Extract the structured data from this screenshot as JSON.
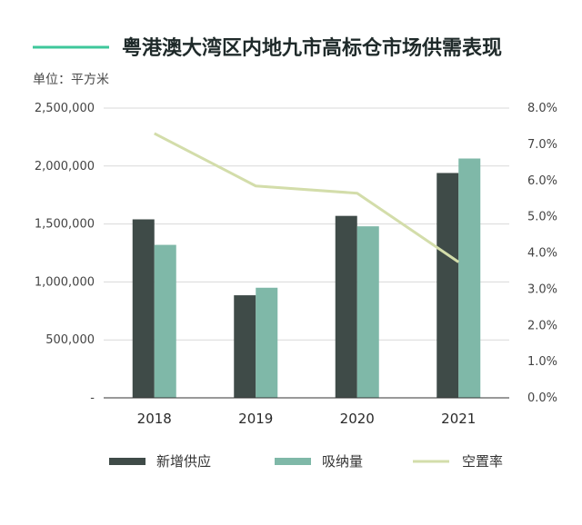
{
  "title": "粤港澳大湾区内地九市高标仓市场供需表现",
  "unit_label": "单位：平方米",
  "colors": {
    "title_line": "#3ec79b",
    "supply": "#3f4b48",
    "absorption": "#7fb8a8",
    "vacancy": "#d3ddaa",
    "grid": "#d9d9d9",
    "axis": "#333333"
  },
  "chart_data": {
    "type": "bar",
    "categories": [
      "2018",
      "2019",
      "2020",
      "2021"
    ],
    "series": [
      {
        "name": "新增供应",
        "type": "bar",
        "axis": "left",
        "values": [
          1540000,
          885000,
          1570000,
          1940000
        ]
      },
      {
        "name": "吸纳量",
        "type": "bar",
        "axis": "left",
        "values": [
          1320000,
          950000,
          1480000,
          2065000
        ]
      },
      {
        "name": "空置率",
        "type": "line",
        "axis": "right",
        "values": [
          7.3,
          5.85,
          5.65,
          3.75
        ]
      }
    ],
    "ylim_left": [
      0,
      2500000
    ],
    "yticks_left": [
      "-",
      "500,000",
      "1,000,000",
      "1,500,000",
      "2,000,000",
      "2,500,000"
    ],
    "ylim_right": [
      0,
      8
    ],
    "yticks_right": [
      "0.0%",
      "1.0%",
      "2.0%",
      "3.0%",
      "4.0%",
      "5.0%",
      "6.0%",
      "7.0%",
      "8.0%"
    ],
    "grid": true,
    "legend_position": "bottom"
  }
}
